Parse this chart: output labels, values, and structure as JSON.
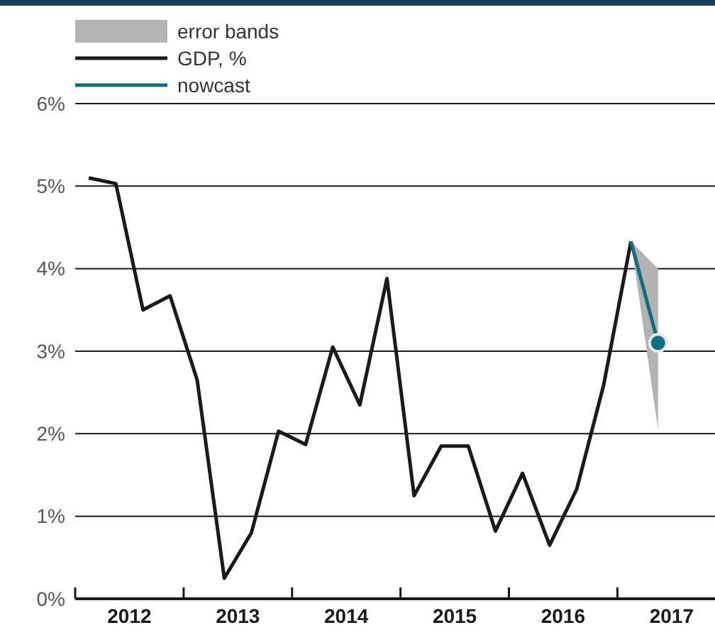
{
  "chart_data": {
    "type": "line",
    "series": [
      {
        "name": "GDP, %",
        "color": "#1a1a1a",
        "x": [
          2012.125,
          2012.375,
          2012.625,
          2012.875,
          2013.125,
          2013.375,
          2013.625,
          2013.875,
          2014.125,
          2014.375,
          2014.625,
          2014.875,
          2015.125,
          2015.375,
          2015.625,
          2015.875,
          2016.125,
          2016.375,
          2016.625,
          2016.875,
          2017.125
        ],
        "values": [
          5.1,
          5.03,
          3.5,
          3.67,
          2.65,
          0.25,
          0.8,
          2.03,
          1.87,
          3.05,
          2.35,
          3.88,
          1.25,
          1.85,
          1.85,
          0.82,
          1.52,
          0.65,
          1.33,
          2.6,
          4.33
        ]
      },
      {
        "name": "nowcast",
        "color": "#0f6e82",
        "x": [
          2017.125,
          2017.375
        ],
        "values": [
          4.33,
          3.1
        ],
        "lower": [
          4.33,
          2.05
        ],
        "upper": [
          4.33,
          4.0
        ]
      },
      {
        "type": "scatter",
        "color": "#0f6e82",
        "marker": "circle",
        "x": [
          2017.375
        ],
        "values": [
          3.1
        ]
      }
    ],
    "xlim": [
      2012,
      2017.9
    ],
    "xticks": [
      {
        "value": 2012,
        "label": null
      },
      {
        "value": 2012.5,
        "label": "2012"
      },
      {
        "value": 2013,
        "label": null
      },
      {
        "value": 2013.5,
        "label": "2013"
      },
      {
        "value": 2014,
        "label": null
      },
      {
        "value": 2014.5,
        "label": "2014"
      },
      {
        "value": 2015,
        "label": null
      },
      {
        "value": 2015.5,
        "label": "2015"
      },
      {
        "value": 2016,
        "label": null
      },
      {
        "value": 2016.5,
        "label": "2016"
      },
      {
        "value": 2017,
        "label": null
      },
      {
        "value": 2017.5,
        "label": "2017"
      }
    ],
    "ylim": [
      0,
      6
    ],
    "yticks": [
      {
        "value": 0,
        "label": "0%"
      },
      {
        "value": 1,
        "label": "1%"
      },
      {
        "value": 2,
        "label": "2%"
      },
      {
        "value": 3,
        "label": "3%"
      },
      {
        "value": 4,
        "label": "4%"
      },
      {
        "value": 5,
        "label": "5%"
      },
      {
        "value": 6,
        "label": "6%"
      }
    ],
    "annotations": [
      "error bands"
    ],
    "grid": "y",
    "legend": "top left",
    "marker": "none",
    "line_style": "solid"
  }
}
